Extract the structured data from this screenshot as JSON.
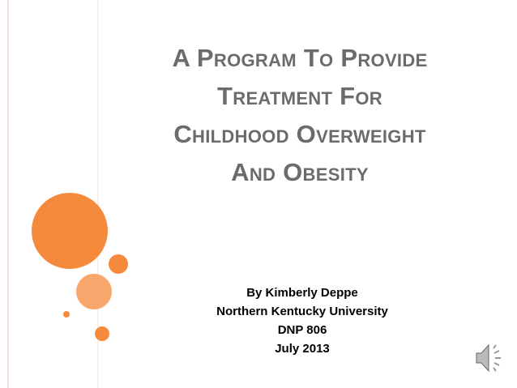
{
  "slide": {
    "title_lines": [
      "A Program To Provide",
      "Treatment For",
      "Childhood Overweight",
      "And Obesity"
    ],
    "subtitle_lines": [
      "By Kimberly Deppe",
      "Northern Kentucky University",
      "DNP 806",
      "July 2013"
    ]
  }
}
